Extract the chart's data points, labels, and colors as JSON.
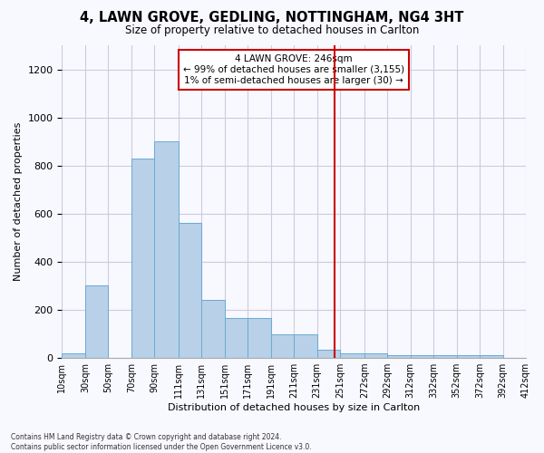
{
  "title": "4, LAWN GROVE, GEDLING, NOTTINGHAM, NG4 3HT",
  "subtitle": "Size of property relative to detached houses in Carlton",
  "xlabel": "Distribution of detached houses by size in Carlton",
  "ylabel": "Number of detached properties",
  "bar_color": "#b8d0e8",
  "bar_edge_color": "#6aaad4",
  "background_color": "#f8f8ff",
  "grid_color": "#ccccdd",
  "vline_x": 246,
  "vline_color": "#cc0000",
  "annotation_text": "4 LAWN GROVE: 246sqm\n← 99% of detached houses are smaller (3,155)\n1% of semi-detached houses are larger (30) →",
  "annotation_box_color": "#cc0000",
  "bins": [
    10,
    30,
    50,
    70,
    90,
    111,
    131,
    151,
    171,
    191,
    211,
    231,
    251,
    272,
    292,
    312,
    332,
    352,
    372,
    392,
    412
  ],
  "bin_labels": [
    "10sqm",
    "30sqm",
    "50sqm",
    "70sqm",
    "90sqm",
    "111sqm",
    "131sqm",
    "151sqm",
    "171sqm",
    "191sqm",
    "211sqm",
    "231sqm",
    "251sqm",
    "272sqm",
    "292sqm",
    "312sqm",
    "332sqm",
    "352sqm",
    "372sqm",
    "392sqm",
    "412sqm"
  ],
  "bar_heights": [
    20,
    300,
    0,
    830,
    900,
    560,
    240,
    165,
    165,
    100,
    100,
    35,
    20,
    20,
    10,
    10,
    10,
    10,
    10,
    0
  ],
  "ylim": [
    0,
    1300
  ],
  "yticks": [
    0,
    200,
    400,
    600,
    800,
    1000,
    1200
  ],
  "footnote": "Contains HM Land Registry data © Crown copyright and database right 2024.\nContains public sector information licensed under the Open Government Licence v3.0."
}
